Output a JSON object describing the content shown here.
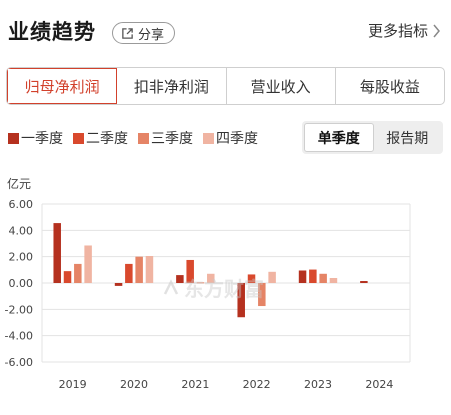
{
  "header": {
    "title": "业绩趋势",
    "share_label": "分享",
    "more_label": "更多指标"
  },
  "tabs": [
    {
      "label": "归母净利润",
      "active": true
    },
    {
      "label": "扣非净利润",
      "active": false
    },
    {
      "label": "营业收入",
      "active": false
    },
    {
      "label": "每股收益",
      "active": false
    }
  ],
  "mode_toggle": [
    {
      "label": "单季度",
      "active": true
    },
    {
      "label": "报告期",
      "active": false
    }
  ],
  "watermark": "东方财富",
  "colors": {
    "accent": "#d2412c",
    "q1": "#b5311f",
    "q2": "#d9492d",
    "q3": "#e58466",
    "q4": "#f0b4a2"
  },
  "chart_data": {
    "type": "bar",
    "unit_label": "亿元",
    "categories": [
      "2019",
      "2020",
      "2021",
      "2022",
      "2023",
      "2024"
    ],
    "series": [
      {
        "name": "一季度",
        "values": [
          4.55,
          -0.22,
          0.6,
          -2.6,
          0.95,
          0.15
        ]
      },
      {
        "name": "二季度",
        "values": [
          0.9,
          1.45,
          1.75,
          0.65,
          1.02,
          null
        ]
      },
      {
        "name": "三季度",
        "values": [
          1.45,
          2.0,
          0.05,
          -1.75,
          0.7,
          null
        ]
      },
      {
        "name": "四季度",
        "values": [
          2.85,
          2.05,
          0.7,
          0.85,
          0.38,
          null
        ]
      }
    ],
    "yticks": [
      6.0,
      4.0,
      2.0,
      0.0,
      -2.0,
      -4.0,
      -6.0
    ],
    "ytick_labels": [
      "6.00",
      "4.00",
      "2.00",
      "0.00",
      "-2.00",
      "-4.00",
      "-6.00"
    ],
    "ylim": [
      -6.0,
      6.0
    ],
    "grid": true,
    "legend_position": "top-left"
  }
}
